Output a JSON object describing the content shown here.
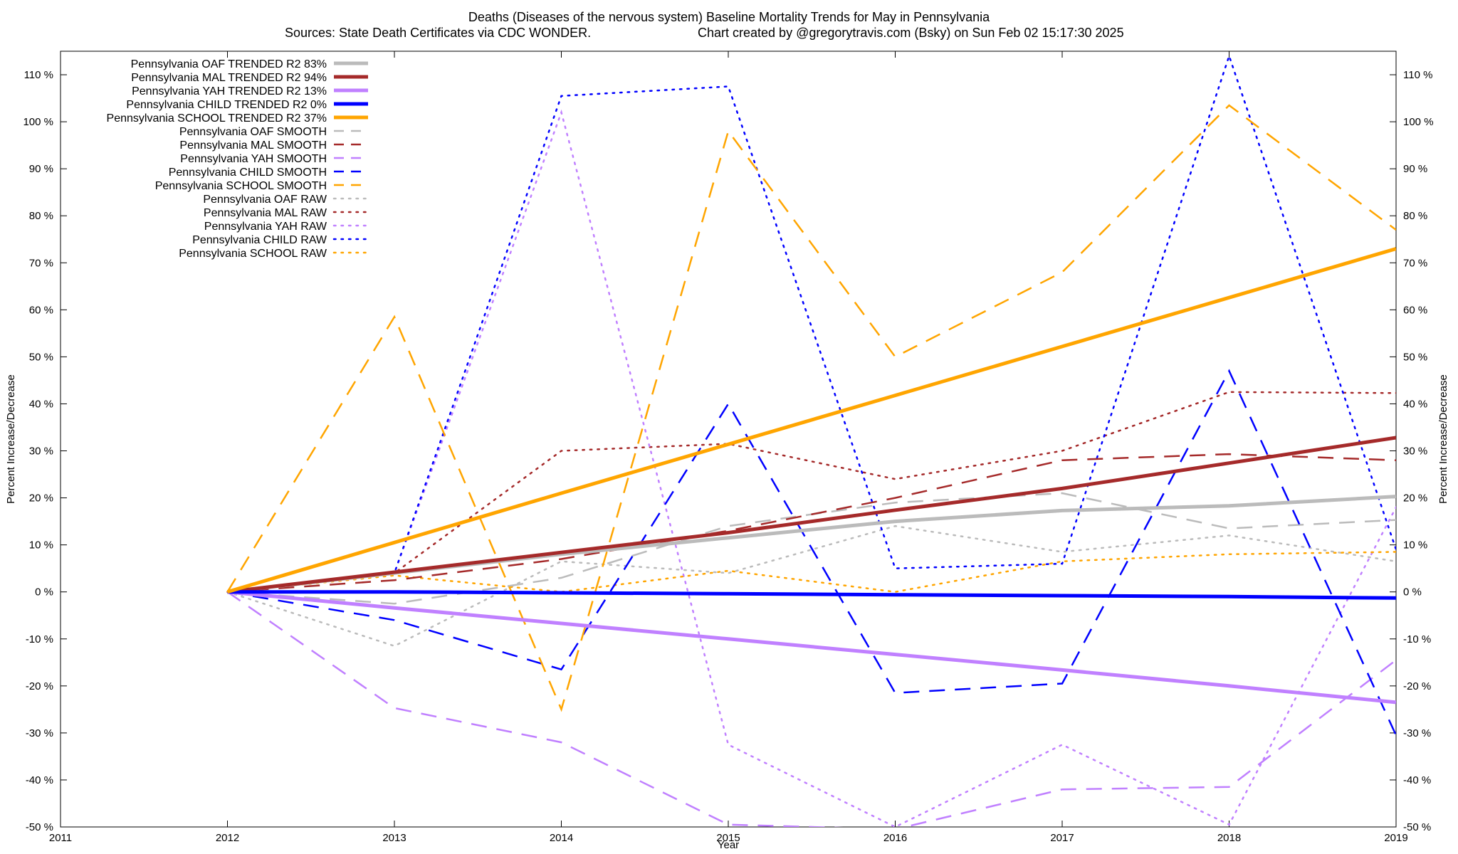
{
  "chart_data": {
    "type": "line",
    "title": "Deaths (Diseases of the nervous system)  Baseline Mortality Trends for May in Pennsylvania",
    "subtitle_left": "Sources: State Death Certificates via CDC WONDER.",
    "subtitle_right": "Chart created by @gregorytravis.com (Bsky) on Sun Feb 02 15:17:30 2025",
    "xlabel": "Year",
    "ylabel_left": "Percent Increase/Decrease",
    "ylabel_right": "Percent Increase/Decrease",
    "xlim": [
      2011,
      2019
    ],
    "ylim": [
      -50,
      115
    ],
    "x_ticks": [
      "2011",
      "2012",
      "2013",
      "2014",
      "2015",
      "2016",
      "2017",
      "2018",
      "2019"
    ],
    "y_ticks": [
      {
        "value": 110,
        "label": "110 %"
      },
      {
        "value": 100,
        "label": "100 %"
      },
      {
        "value": 90,
        "label": "90 %"
      },
      {
        "value": 80,
        "label": "80 %"
      },
      {
        "value": 70,
        "label": "70 %"
      },
      {
        "value": 60,
        "label": "60 %"
      },
      {
        "value": 50,
        "label": "50 %"
      },
      {
        "value": 40,
        "label": "40 %"
      },
      {
        "value": 30,
        "label": "30 %"
      },
      {
        "value": 20,
        "label": "20 %"
      },
      {
        "value": 10,
        "label": "10 %"
      },
      {
        "value": 0,
        "label": "0 %"
      },
      {
        "value": -10,
        "label": "-10 %"
      },
      {
        "value": -20,
        "label": "-20 %"
      },
      {
        "value": -30,
        "label": "-30 %"
      },
      {
        "value": -40,
        "label": "-40 %"
      },
      {
        "value": -50,
        "label": "-50 %"
      }
    ],
    "grid": false,
    "legend_position": "top-left",
    "x": [
      2012,
      2013,
      2014,
      2015,
      2016,
      2017,
      2018,
      2019
    ],
    "series": [
      {
        "name": "Pennsylvania OAF TRENDED R2  83%",
        "color": "#bbbbbb",
        "style": "solid",
        "values": [
          0,
          4,
          8,
          11.5,
          15,
          17.3,
          18.3,
          20.3
        ]
      },
      {
        "name": "Pennsylvania MAL TRENDED R2  94%",
        "color": "#a52a2a",
        "style": "solid",
        "values": [
          0,
          4.2,
          8.4,
          12.6,
          17.4,
          22,
          27.4,
          32.8
        ]
      },
      {
        "name": "Pennsylvania YAH TRENDED R2  13%",
        "color": "#c080ff",
        "style": "solid",
        "values": [
          0,
          -3.4,
          -6.7,
          -10,
          -13.3,
          -16.6,
          -20,
          -23.5
        ]
      },
      {
        "name": "Pennsylvania CHILD TRENDED R2   0%",
        "color": "#0000ff",
        "style": "solid",
        "values": [
          0,
          0,
          -0.2,
          -0.4,
          -0.6,
          -0.8,
          -1,
          -1.3
        ]
      },
      {
        "name": "Pennsylvania SCHOOL TRENDED R2  37%",
        "color": "#ffa500",
        "style": "solid",
        "values": [
          0,
          10.5,
          21,
          31.4,
          41.8,
          52.2,
          62.6,
          73
        ]
      },
      {
        "name": "Pennsylvania OAF SMOOTH",
        "color": "#bbbbbb",
        "style": "dashed",
        "values": [
          0,
          -2.5,
          3,
          14,
          19,
          21,
          13.5,
          15.3
        ]
      },
      {
        "name": "Pennsylvania MAL SMOOTH",
        "color": "#a52a2a",
        "style": "dashed",
        "values": [
          0,
          2.5,
          7,
          13,
          20,
          28,
          29.3,
          28
        ]
      },
      {
        "name": "Pennsylvania YAH SMOOTH",
        "color": "#c080ff",
        "style": "dashed",
        "values": [
          0,
          -24.7,
          -32,
          -49.5,
          -50.5,
          -42,
          -41.5,
          -14.5
        ]
      },
      {
        "name": "Pennsylvania CHILD SMOOTH",
        "color": "#0000ff",
        "style": "dashed",
        "values": [
          0,
          -6,
          -16.5,
          40,
          -21.5,
          -19.5,
          47,
          -30.5
        ]
      },
      {
        "name": "Pennsylvania SCHOOL SMOOTH",
        "color": "#ffa500",
        "style": "dashed",
        "values": [
          0,
          58.5,
          -25,
          98,
          50,
          68,
          103.5,
          77
        ]
      },
      {
        "name": "Pennsylvania OAF RAW",
        "color": "#bbbbbb",
        "style": "dotted",
        "values": [
          0,
          -11.5,
          6.5,
          4,
          14,
          8.5,
          12,
          6.5
        ]
      },
      {
        "name": "Pennsylvania MAL RAW",
        "color": "#a52a2a",
        "style": "dotted",
        "values": [
          0,
          4,
          30,
          31.5,
          24,
          30,
          42.5,
          42.3
        ]
      },
      {
        "name": "Pennsylvania YAH RAW",
        "color": "#c080ff",
        "style": "dotted",
        "values": [
          0,
          4,
          102,
          -32.5,
          -50,
          -32.5,
          -49.5,
          18
        ]
      },
      {
        "name": "Pennsylvania CHILD RAW",
        "color": "#0000ff",
        "style": "dotted",
        "values": [
          0,
          4,
          105.5,
          107.5,
          5,
          6,
          114,
          9
        ]
      },
      {
        "name": "Pennsylvania SCHOOL RAW",
        "color": "#ffa500",
        "style": "dotted",
        "values": [
          0,
          3.5,
          0,
          4.5,
          0,
          6.5,
          8,
          8.5
        ]
      }
    ]
  }
}
